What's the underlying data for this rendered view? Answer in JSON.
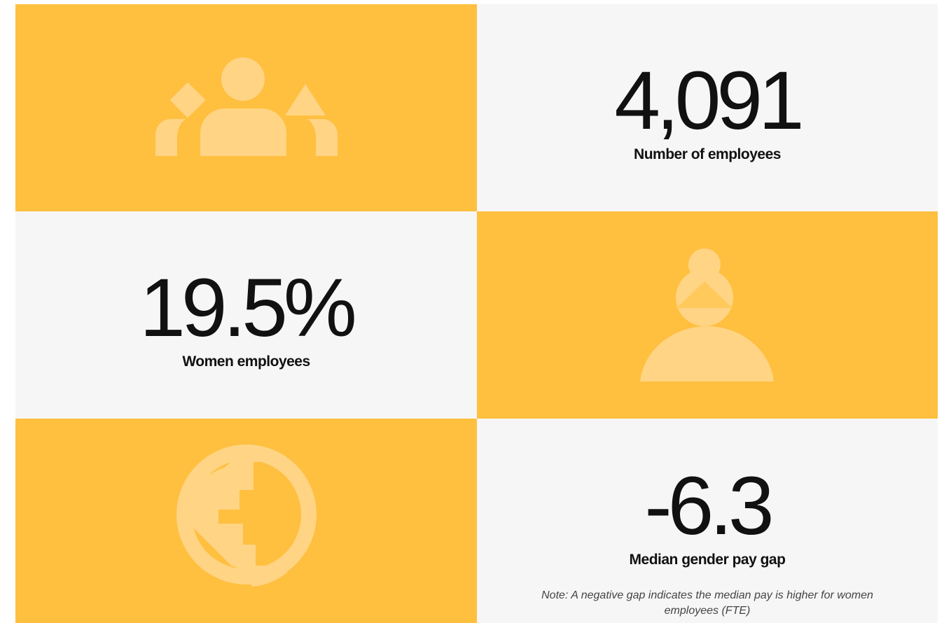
{
  "tiles": [
    {
      "value": "4,091",
      "label": "Number of employees"
    },
    {
      "value": "19.5%",
      "label": "Women employees"
    },
    {
      "value": "-6.3",
      "label": "Median gender pay gap",
      "note": "Note: A negative gap indicates the median pay is higher for women employees (FTE)"
    }
  ]
}
